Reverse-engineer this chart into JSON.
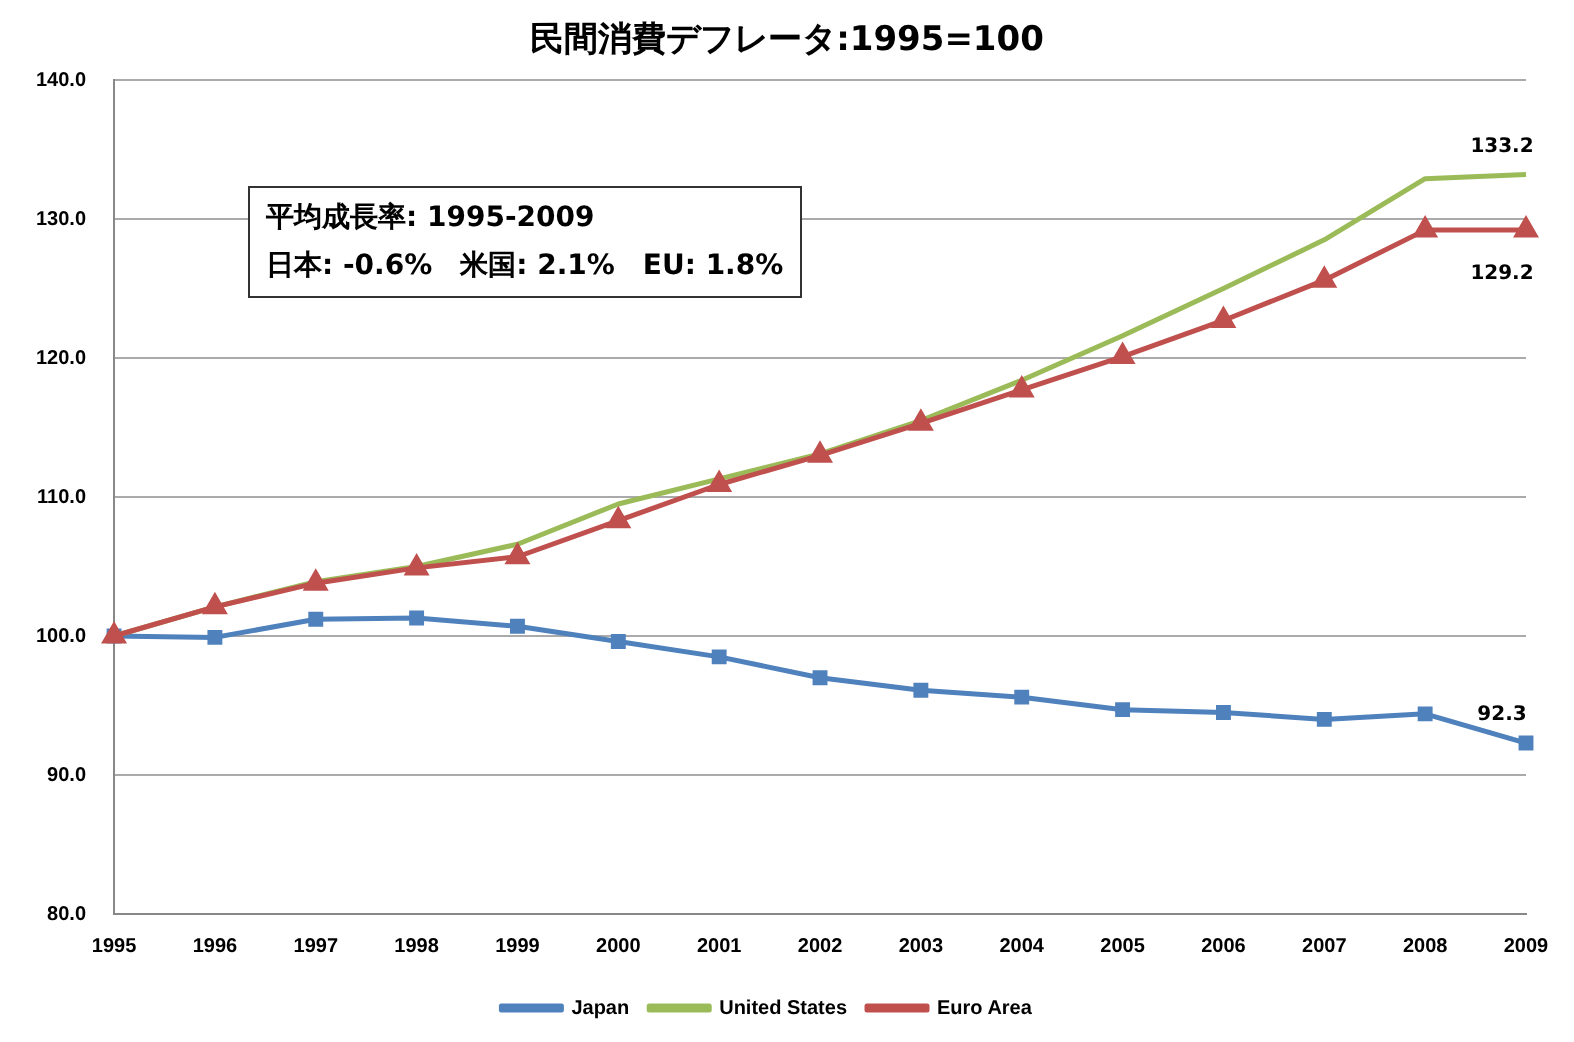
{
  "chart_data": {
    "type": "line",
    "title": "民間消費デフレータ:1995=100",
    "categories": [
      "1995",
      "1996",
      "1997",
      "1998",
      "1999",
      "2000",
      "2001",
      "2002",
      "2003",
      "2004",
      "2005",
      "2006",
      "2007",
      "2008",
      "2009"
    ],
    "series": [
      {
        "name": "Japan",
        "color": "#4f81bd",
        "marker": "square",
        "values": [
          100.0,
          99.9,
          101.2,
          101.3,
          100.7,
          99.6,
          98.5,
          97.0,
          96.1,
          95.6,
          94.7,
          94.5,
          94.0,
          94.4,
          92.3
        ],
        "value_labels": [
          null,
          null,
          null,
          null,
          null,
          null,
          null,
          null,
          null,
          null,
          null,
          null,
          null,
          null,
          "92.3"
        ]
      },
      {
        "name": "United States",
        "color": "#9bbb59",
        "marker": "none",
        "values": [
          100.0,
          102.1,
          103.9,
          105.0,
          106.6,
          109.5,
          111.3,
          113.1,
          115.5,
          118.4,
          121.6,
          125.0,
          128.5,
          132.9,
          133.2
        ],
        "value_labels": [
          null,
          null,
          null,
          null,
          null,
          null,
          null,
          null,
          null,
          null,
          null,
          null,
          null,
          null,
          "133.2"
        ]
      },
      {
        "name": "Euro Area",
        "color": "#c0504d",
        "marker": "triangle",
        "values": [
          100.0,
          102.1,
          103.8,
          104.9,
          105.7,
          108.3,
          110.9,
          113.0,
          115.3,
          117.7,
          120.1,
          122.7,
          125.6,
          129.2,
          129.2
        ],
        "value_labels": [
          null,
          null,
          null,
          null,
          null,
          null,
          null,
          null,
          null,
          null,
          null,
          null,
          null,
          null,
          "129.2"
        ]
      }
    ],
    "ylim": [
      80,
      140
    ],
    "yticks": [
      {
        "value": 80,
        "label": "80.0"
      },
      {
        "value": 90,
        "label": "90.0"
      },
      {
        "value": 100,
        "label": "100.0"
      },
      {
        "value": 110,
        "label": "110.0"
      },
      {
        "value": 120,
        "label": "120.0"
      },
      {
        "value": 130,
        "label": "130.0"
      },
      {
        "value": 140,
        "label": "140.0"
      }
    ],
    "grid": "y",
    "legend": "bottom",
    "annotations": [
      "平均成長率: 1995-2009",
      "日本: -0.6%　米国: 2.1%　EU: 1.8%"
    ]
  }
}
